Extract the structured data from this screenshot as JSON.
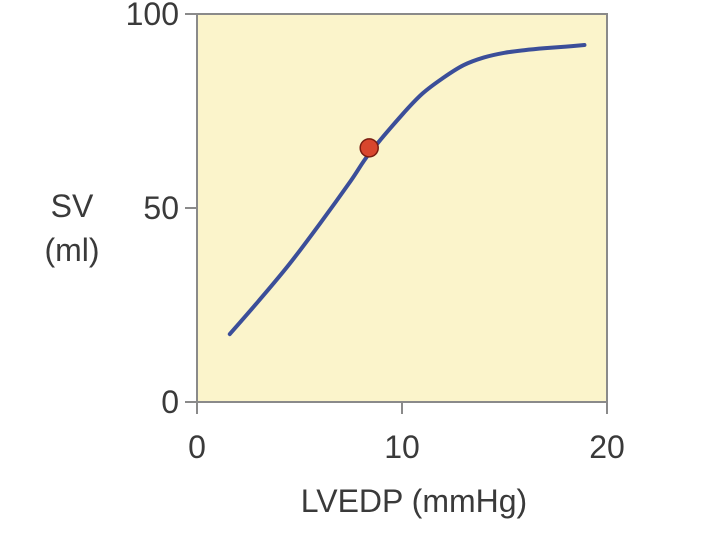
{
  "chart_data": {
    "type": "line",
    "title": "",
    "xlabel": "LVEDP (mmHg)",
    "ylabel_lines": [
      "SV",
      "(ml)"
    ],
    "xlim": [
      0,
      20
    ],
    "ylim": [
      0,
      100
    ],
    "xticks": [
      0,
      10,
      20
    ],
    "yticks": [
      0,
      50,
      100
    ],
    "grid": false,
    "series": [
      {
        "color": "#3b4e99",
        "x": [
          1.6,
          3,
          4.5,
          6,
          7.5,
          8.4,
          10,
          11,
          12,
          13,
          14,
          15,
          16,
          17,
          18,
          18.9
        ],
        "y": [
          17.5,
          26,
          35.5,
          46,
          57,
          64,
          74,
          79.5,
          83.5,
          86.8,
          88.8,
          90,
          90.7,
          91.2,
          91.6,
          92
        ]
      }
    ],
    "marker": {
      "x": 8.4,
      "y": 65.5,
      "color": "#d8462d"
    },
    "colors": {
      "plot_bg": "#fbf4cb",
      "frame": "#8a8a8a",
      "text": "#3a3a3a"
    }
  }
}
